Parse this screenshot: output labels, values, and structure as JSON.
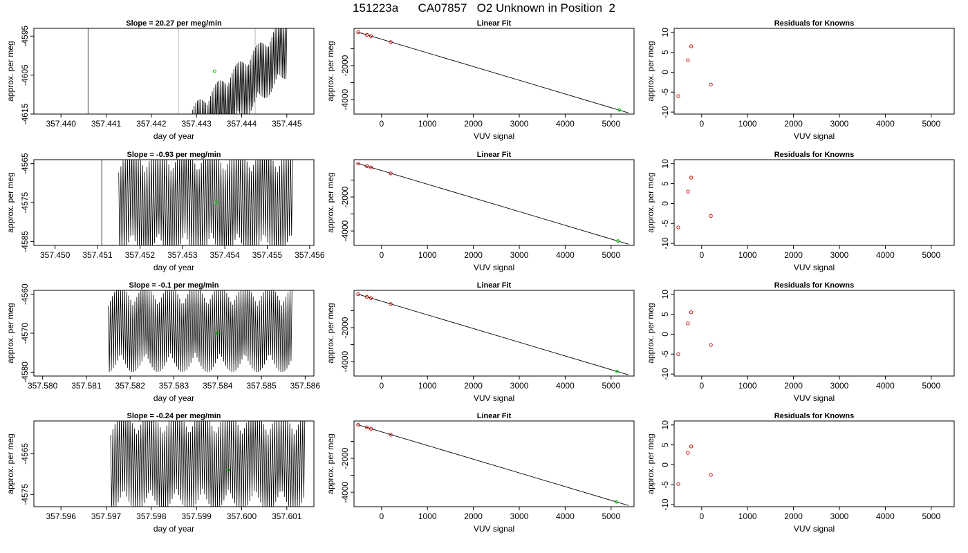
{
  "page_title": "151223a      CA07857   O2 Unknown in Position  2",
  "colors": {
    "trace": "#000000",
    "unknown_point": "#00cc00",
    "known_points": "#cc0000",
    "event_line_dark": "#444444",
    "event_line_light": "#bbbbbb"
  },
  "chart_data": [
    {
      "type": "line",
      "title": "Slope =  20.27  per meg/min",
      "xlabel": "day of year",
      "ylabel": "approx. per meg",
      "xlim": [
        357.4394,
        357.4456
      ],
      "ylim": [
        -4615,
        -4593
      ],
      "xticks": [
        357.44,
        357.441,
        357.442,
        357.443,
        357.444,
        357.445
      ],
      "xticklabels": [
        "357.440",
        "357.441",
        "357.442",
        "357.443",
        "357.444",
        "357.445"
      ],
      "yticks": [
        -4615,
        -4605,
        -4595
      ],
      "yticklabels": [
        "-4615",
        "-4605",
        "-4595"
      ],
      "trace": {
        "x_start": 357.4428,
        "x_end": 357.445,
        "start_mean": -4622,
        "end_mean": -4598,
        "amplitude": 8,
        "cycles": 60
      },
      "vlines": [
        {
          "x": 357.4406,
          "tone": "dark"
        },
        {
          "x": 357.4426,
          "tone": "light"
        },
        {
          "x": 357.4443,
          "tone": "light"
        }
      ],
      "highlight_point": {
        "x": 357.4434,
        "y": -4604
      }
    },
    {
      "type": "scatter",
      "title": "Linear Fit",
      "xlabel": "VUV signal",
      "ylabel": "approx. per meg",
      "xlim": [
        -600,
        5500
      ],
      "ylim": [
        -4850,
        200
      ],
      "xticks": [
        0,
        1000,
        2000,
        3000,
        4000,
        5000
      ],
      "xticklabels": [
        "0",
        "1000",
        "2000",
        "3000",
        "4000",
        "5000"
      ],
      "yticks": [
        -4000,
        -3000,
        -2000,
        -1000
      ],
      "yticklabels": [
        "-4000",
        "",
        "-2000",
        ""
      ],
      "fit_line": {
        "x": [
          -520,
          5380
        ],
        "y": [
          -20,
          -4780
        ]
      },
      "known_points": {
        "x": [
          -510,
          -320,
          -230,
          200
        ],
        "y": [
          -30,
          -180,
          -260,
          -610
        ]
      },
      "unknown_point": {
        "x": 5180,
        "y": -4610
      }
    },
    {
      "type": "scatter",
      "title": "Residuals for Knowns",
      "xlabel": "VUV signal",
      "ylabel": "approx. per meg",
      "xlim": [
        -600,
        5500
      ],
      "ylim": [
        -10.5,
        11
      ],
      "xticks": [
        0,
        1000,
        2000,
        3000,
        4000,
        5000
      ],
      "xticklabels": [
        "0",
        "1000",
        "2000",
        "3000",
        "4000",
        "5000"
      ],
      "yticks": [
        -10,
        -5,
        0,
        5,
        10
      ],
      "yticklabels": [
        "-10",
        "-5",
        "0",
        "5",
        "10"
      ],
      "known_points": {
        "x": [
          -510,
          -300,
          -230,
          200
        ],
        "y": [
          -6.0,
          3.0,
          6.5,
          -3.1
        ]
      }
    },
    {
      "type": "line",
      "title": "Slope =  -0.93  per meg/min",
      "xlabel": "day of year",
      "ylabel": "approx. per meg",
      "xlim": [
        357.4495,
        357.4561
      ],
      "ylim": [
        -4586,
        -4564
      ],
      "xticks": [
        357.45,
        357.451,
        357.452,
        357.453,
        357.454,
        357.455,
        357.456
      ],
      "xticklabels": [
        "357.450",
        "357.451",
        "357.452",
        "357.453",
        "357.454",
        "357.455",
        "357.456"
      ],
      "yticks": [
        -4585,
        -4575,
        -4565
      ],
      "yticklabels": [
        "-4585",
        "-4575",
        "-4565"
      ],
      "trace": {
        "x_start": 357.4515,
        "x_end": 357.4556,
        "start_mean": -4575,
        "end_mean": -4575,
        "amplitude": 14,
        "cycles": 80
      },
      "vlines": [
        {
          "x": 357.4511,
          "tone": "dark"
        }
      ],
      "highlight_point": {
        "x": 357.4538,
        "y": -4575
      }
    },
    {
      "type": "scatter",
      "title": "Linear Fit",
      "xlabel": "VUV signal",
      "ylabel": "approx. per meg",
      "xlim": [
        -600,
        5500
      ],
      "ylim": [
        -4850,
        200
      ],
      "xticks": [
        0,
        1000,
        2000,
        3000,
        4000,
        5000
      ],
      "xticklabels": [
        "0",
        "1000",
        "2000",
        "3000",
        "4000",
        "5000"
      ],
      "yticks": [
        -4000,
        -3000,
        -2000,
        -1000
      ],
      "yticklabels": [
        "-4000",
        "",
        "-2000",
        ""
      ],
      "fit_line": {
        "x": [
          -520,
          5380
        ],
        "y": [
          -20,
          -4780
        ]
      },
      "known_points": {
        "x": [
          -510,
          -320,
          -230,
          200
        ],
        "y": [
          -30,
          -180,
          -260,
          -610
        ]
      },
      "unknown_point": {
        "x": 5150,
        "y": -4590
      }
    },
    {
      "type": "scatter",
      "title": "Residuals for Knowns",
      "xlabel": "VUV signal",
      "ylabel": "approx. per meg",
      "xlim": [
        -600,
        5500
      ],
      "ylim": [
        -10.5,
        11
      ],
      "xticks": [
        0,
        1000,
        2000,
        3000,
        4000,
        5000
      ],
      "xticklabels": [
        "0",
        "1000",
        "2000",
        "3000",
        "4000",
        "5000"
      ],
      "yticks": [
        -10,
        -5,
        0,
        5,
        10
      ],
      "yticklabels": [
        "-10",
        "-5",
        "0",
        "5",
        "10"
      ],
      "known_points": {
        "x": [
          -510,
          -300,
          -230,
          200
        ],
        "y": [
          -6.0,
          3.0,
          6.5,
          -3.1
        ]
      }
    },
    {
      "type": "line",
      "title": "Slope =  -0.1  per meg/min",
      "xlabel": "day of year",
      "ylabel": "approx. per meg",
      "xlim": [
        357.5798,
        357.5862
      ],
      "ylim": [
        -4581,
        -4559
      ],
      "xticks": [
        357.58,
        357.581,
        357.582,
        357.583,
        357.584,
        357.585,
        357.586
      ],
      "xticklabels": [
        "357.580",
        "357.581",
        "357.582",
        "357.583",
        "357.584",
        "357.585",
        "357.586"
      ],
      "yticks": [
        -4580,
        -4570,
        -4560
      ],
      "yticklabels": [
        "-4580",
        "-4570",
        "-4560"
      ],
      "trace": {
        "x_start": 357.5815,
        "x_end": 357.5857,
        "start_mean": -4569,
        "end_mean": -4569,
        "amplitude": 11,
        "cycles": 90
      },
      "vlines": [],
      "highlight_point": {
        "x": 357.584,
        "y": -4570
      }
    },
    {
      "type": "scatter",
      "title": "Linear Fit",
      "xlabel": "VUV signal",
      "ylabel": "approx. per meg",
      "xlim": [
        -600,
        5500
      ],
      "ylim": [
        -4850,
        200
      ],
      "xticks": [
        0,
        1000,
        2000,
        3000,
        4000,
        5000
      ],
      "xticklabels": [
        "0",
        "1000",
        "2000",
        "3000",
        "4000",
        "5000"
      ],
      "yticks": [
        -4000,
        -3000,
        -2000,
        -1000
      ],
      "yticklabels": [
        "-4000",
        "",
        "-2000",
        ""
      ],
      "fit_line": {
        "x": [
          -520,
          5380
        ],
        "y": [
          -20,
          -4780
        ]
      },
      "known_points": {
        "x": [
          -510,
          -320,
          -230,
          200
        ],
        "y": [
          -30,
          -180,
          -260,
          -610
        ]
      },
      "unknown_point": {
        "x": 5130,
        "y": -4580
      }
    },
    {
      "type": "scatter",
      "title": "Residuals for Knowns",
      "xlabel": "VUV signal",
      "ylabel": "approx. per meg",
      "xlim": [
        -600,
        5500
      ],
      "ylim": [
        -10.5,
        11
      ],
      "xticks": [
        0,
        1000,
        2000,
        3000,
        4000,
        5000
      ],
      "xticklabels": [
        "0",
        "1000",
        "2000",
        "3000",
        "4000",
        "5000"
      ],
      "yticks": [
        -10,
        -5,
        0,
        5,
        10
      ],
      "yticklabels": [
        "-10",
        "-5",
        "0",
        "5",
        "10"
      ],
      "known_points": {
        "x": [
          -510,
          -300,
          -230,
          200
        ],
        "y": [
          -5.0,
          2.7,
          5.5,
          -2.7
        ]
      }
    },
    {
      "type": "line",
      "title": "Slope =  -0.24  per meg/min",
      "xlabel": "day of year",
      "ylabel": "approx. per meg",
      "xlim": [
        357.5954,
        357.6016
      ],
      "ylim": [
        -4578,
        -4557
      ],
      "xticks": [
        357.596,
        357.597,
        357.598,
        357.599,
        357.6,
        357.601
      ],
      "xticklabels": [
        "357.596",
        "357.597",
        "357.598",
        "357.599",
        "357.600",
        "357.601"
      ],
      "yticks": [
        -4575,
        -4565
      ],
      "yticklabels": [
        "-4575",
        "-4565"
      ],
      "trace": {
        "x_start": 357.5971,
        "x_end": 357.6014,
        "start_mean": -4567,
        "end_mean": -4567,
        "amplitude": 12,
        "cycles": 90
      },
      "vlines": [],
      "highlight_point": {
        "x": 357.5997,
        "y": -4569
      }
    },
    {
      "type": "scatter",
      "title": "Linear Fit",
      "xlabel": "VUV signal",
      "ylabel": "approx. per meg",
      "xlim": [
        -600,
        5500
      ],
      "ylim": [
        -4850,
        200
      ],
      "xticks": [
        0,
        1000,
        2000,
        3000,
        4000,
        5000
      ],
      "xticklabels": [
        "0",
        "1000",
        "2000",
        "3000",
        "4000",
        "5000"
      ],
      "yticks": [
        -4000,
        -3000,
        -2000,
        -1000
      ],
      "yticklabels": [
        "-4000",
        "",
        "-2000",
        ""
      ],
      "fit_line": {
        "x": [
          -520,
          5380
        ],
        "y": [
          -20,
          -4780
        ]
      },
      "known_points": {
        "x": [
          -510,
          -320,
          -230,
          200
        ],
        "y": [
          -30,
          -180,
          -260,
          -610
        ]
      },
      "unknown_point": {
        "x": 5120,
        "y": -4570
      }
    },
    {
      "type": "scatter",
      "title": "Residuals for Knowns",
      "xlabel": "VUV signal",
      "ylabel": "approx. per meg",
      "xlim": [
        -600,
        5500
      ],
      "ylim": [
        -10.5,
        11
      ],
      "xticks": [
        0,
        1000,
        2000,
        3000,
        4000,
        5000
      ],
      "xticklabels": [
        "0",
        "1000",
        "2000",
        "3000",
        "4000",
        "5000"
      ],
      "yticks": [
        -10,
        -5,
        0,
        5,
        10
      ],
      "yticklabels": [
        "-10",
        "-5",
        "0",
        "5",
        "10"
      ],
      "known_points": {
        "x": [
          -510,
          -300,
          -230,
          200
        ],
        "y": [
          -4.8,
          3.0,
          4.6,
          -2.5
        ]
      }
    }
  ]
}
